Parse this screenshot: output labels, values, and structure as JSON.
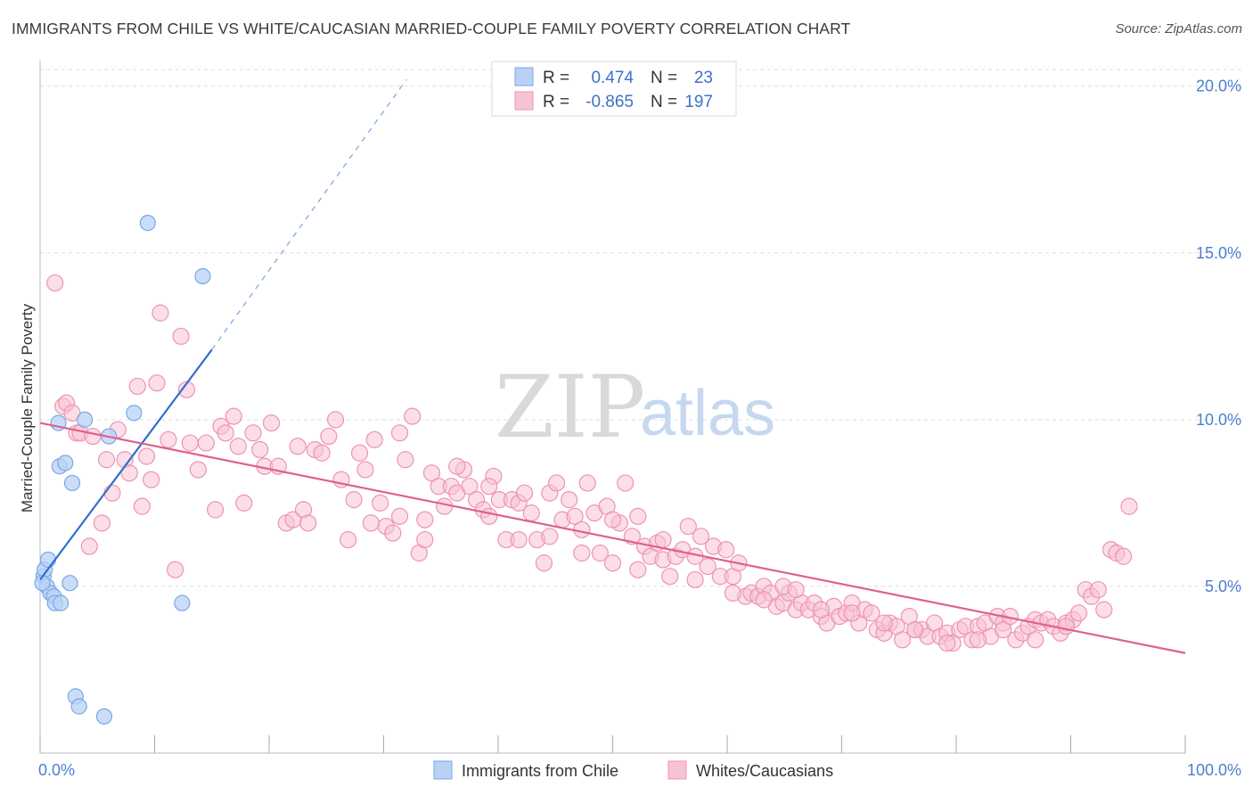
{
  "title": "IMMIGRANTS FROM CHILE VS WHITE/CAUCASIAN MARRIED-COUPLE FAMILY POVERTY CORRELATION CHART",
  "source": "Source: ZipAtlas.com",
  "watermark": {
    "zip": "ZIP",
    "atlas": "atlas"
  },
  "colors": {
    "blue_fill": "#b8d2f5",
    "blue_stroke": "#7aa7e6",
    "blue_line": "#2f6fd0",
    "pink_fill": "#f7c3d4",
    "pink_stroke": "#ee93b2",
    "pink_line": "#e0608e",
    "axis_text": "#4a7fd0",
    "grid": "#dddddd"
  },
  "legend": {
    "rows": [
      {
        "r_label": "R =",
        "r_value": "0.474",
        "n_label": "N =",
        "n_value": "23"
      },
      {
        "r_label": "R =",
        "r_value": "-0.865",
        "n_label": "N =",
        "n_value": "197"
      }
    ]
  },
  "bottom_legend": [
    "Immigrants from Chile",
    "Whites/Caucasians"
  ],
  "chart_data": {
    "type": "scatter",
    "title": "IMMIGRANTS FROM CHILE VS WHITE/CAUCASIAN MARRIED-COUPLE FAMILY POVERTY CORRELATION CHART",
    "xlabel": "",
    "ylabel": "Married-Couple Family Poverty",
    "xlim": [
      0,
      100
    ],
    "ylim": [
      0,
      20.5
    ],
    "x_tick_labels": [
      "0.0%",
      "100.0%"
    ],
    "y_ticks": [
      5,
      10,
      15,
      20
    ],
    "y_tick_labels": [
      "5.0%",
      "10.0%",
      "15.0%",
      "20.0%"
    ],
    "grid": true,
    "legend_position": "top-center",
    "series": [
      {
        "name": "Immigrants from Chile",
        "color": "#b8d2f5",
        "points": [
          [
            0.3,
            5.3
          ],
          [
            0.4,
            5.5
          ],
          [
            0.6,
            5.0
          ],
          [
            0.7,
            5.8
          ],
          [
            0.9,
            4.8
          ],
          [
            1.2,
            4.7
          ],
          [
            1.3,
            4.5
          ],
          [
            1.6,
            9.9
          ],
          [
            1.7,
            8.6
          ],
          [
            1.8,
            4.5
          ],
          [
            2.2,
            8.7
          ],
          [
            2.6,
            5.1
          ],
          [
            2.8,
            8.1
          ],
          [
            3.1,
            1.7
          ],
          [
            3.4,
            1.4
          ],
          [
            3.9,
            10.0
          ],
          [
            5.6,
            1.1
          ],
          [
            6.0,
            9.5
          ],
          [
            8.2,
            10.2
          ],
          [
            9.4,
            15.9
          ],
          [
            12.4,
            4.5
          ],
          [
            14.2,
            14.3
          ],
          [
            0.2,
            5.1
          ]
        ],
        "trend": {
          "x": [
            0,
            15
          ],
          "y": [
            5.2,
            12.1
          ],
          "dashed_to": [
            32,
            20.2
          ]
        }
      },
      {
        "name": "Whites/Caucasians",
        "color": "#f7c3d4",
        "points": [
          [
            1.3,
            14.1
          ],
          [
            2.0,
            10.4
          ],
          [
            2.3,
            10.5
          ],
          [
            2.8,
            10.2
          ],
          [
            3.2,
            9.6
          ],
          [
            3.5,
            9.6
          ],
          [
            4.3,
            6.2
          ],
          [
            4.6,
            9.5
          ],
          [
            5.4,
            6.9
          ],
          [
            5.8,
            8.8
          ],
          [
            6.3,
            7.8
          ],
          [
            6.8,
            9.7
          ],
          [
            7.4,
            8.8
          ],
          [
            7.8,
            8.4
          ],
          [
            8.5,
            11.0
          ],
          [
            8.9,
            7.4
          ],
          [
            9.3,
            8.9
          ],
          [
            9.7,
            8.2
          ],
          [
            10.2,
            11.1
          ],
          [
            10.5,
            13.2
          ],
          [
            11.2,
            9.4
          ],
          [
            11.8,
            5.5
          ],
          [
            12.3,
            12.5
          ],
          [
            12.8,
            10.9
          ],
          [
            13.1,
            9.3
          ],
          [
            13.8,
            8.5
          ],
          [
            14.5,
            9.3
          ],
          [
            15.3,
            7.3
          ],
          [
            15.8,
            9.8
          ],
          [
            16.2,
            9.6
          ],
          [
            16.9,
            10.1
          ],
          [
            17.3,
            9.2
          ],
          [
            17.8,
            7.5
          ],
          [
            18.6,
            9.6
          ],
          [
            19.2,
            9.1
          ],
          [
            19.6,
            8.6
          ],
          [
            20.2,
            9.9
          ],
          [
            20.8,
            8.6
          ],
          [
            21.5,
            6.9
          ],
          [
            22.1,
            7.0
          ],
          [
            22.5,
            9.2
          ],
          [
            23.0,
            7.3
          ],
          [
            23.4,
            6.9
          ],
          [
            24.0,
            9.1
          ],
          [
            24.6,
            9.0
          ],
          [
            25.2,
            9.5
          ],
          [
            25.8,
            10.0
          ],
          [
            26.3,
            8.2
          ],
          [
            26.9,
            6.4
          ],
          [
            27.4,
            7.6
          ],
          [
            27.9,
            9.0
          ],
          [
            28.4,
            8.5
          ],
          [
            29.2,
            9.4
          ],
          [
            29.7,
            7.5
          ],
          [
            30.2,
            6.8
          ],
          [
            30.8,
            6.6
          ],
          [
            31.4,
            7.1
          ],
          [
            31.9,
            8.8
          ],
          [
            32.5,
            10.1
          ],
          [
            33.1,
            6.0
          ],
          [
            33.6,
            6.4
          ],
          [
            34.2,
            8.4
          ],
          [
            34.8,
            8.0
          ],
          [
            35.3,
            7.4
          ],
          [
            35.9,
            8.0
          ],
          [
            36.4,
            7.8
          ],
          [
            37.0,
            8.5
          ],
          [
            37.5,
            8.0
          ],
          [
            38.1,
            7.6
          ],
          [
            38.7,
            7.3
          ],
          [
            39.2,
            7.1
          ],
          [
            39.6,
            8.3
          ],
          [
            40.1,
            7.6
          ],
          [
            40.7,
            6.4
          ],
          [
            41.2,
            7.6
          ],
          [
            41.8,
            7.5
          ],
          [
            42.3,
            7.8
          ],
          [
            42.9,
            7.2
          ],
          [
            43.4,
            6.4
          ],
          [
            44.0,
            5.7
          ],
          [
            44.5,
            7.8
          ],
          [
            45.1,
            8.1
          ],
          [
            45.6,
            7.0
          ],
          [
            46.2,
            7.6
          ],
          [
            46.7,
            7.1
          ],
          [
            47.3,
            6.7
          ],
          [
            47.8,
            8.1
          ],
          [
            48.4,
            7.2
          ],
          [
            48.9,
            6.0
          ],
          [
            49.5,
            7.4
          ],
          [
            50.0,
            5.7
          ],
          [
            50.6,
            6.9
          ],
          [
            51.1,
            8.1
          ],
          [
            51.7,
            6.5
          ],
          [
            52.2,
            7.1
          ],
          [
            52.8,
            6.2
          ],
          [
            53.3,
            5.9
          ],
          [
            53.9,
            6.3
          ],
          [
            54.4,
            5.8
          ],
          [
            55.0,
            5.3
          ],
          [
            55.5,
            5.9
          ],
          [
            56.1,
            6.1
          ],
          [
            56.6,
            6.8
          ],
          [
            57.2,
            5.2
          ],
          [
            57.7,
            6.5
          ],
          [
            58.3,
            5.6
          ],
          [
            58.8,
            6.2
          ],
          [
            59.4,
            5.3
          ],
          [
            59.9,
            6.1
          ],
          [
            60.5,
            5.3
          ],
          [
            61.0,
            5.7
          ],
          [
            61.6,
            4.7
          ],
          [
            62.1,
            4.8
          ],
          [
            62.7,
            4.7
          ],
          [
            63.2,
            5.0
          ],
          [
            63.8,
            4.8
          ],
          [
            64.3,
            4.4
          ],
          [
            64.9,
            4.5
          ],
          [
            65.4,
            4.8
          ],
          [
            66.0,
            4.3
          ],
          [
            66.5,
            4.5
          ],
          [
            67.1,
            4.3
          ],
          [
            67.6,
            4.5
          ],
          [
            68.2,
            4.1
          ],
          [
            68.7,
            3.9
          ],
          [
            69.3,
            4.4
          ],
          [
            69.8,
            4.1
          ],
          [
            70.4,
            4.2
          ],
          [
            70.9,
            4.5
          ],
          [
            71.5,
            3.9
          ],
          [
            72.0,
            4.3
          ],
          [
            72.6,
            4.2
          ],
          [
            73.1,
            3.7
          ],
          [
            73.7,
            3.6
          ],
          [
            74.2,
            3.9
          ],
          [
            74.8,
            3.8
          ],
          [
            75.3,
            3.4
          ],
          [
            75.9,
            4.1
          ],
          [
            76.4,
            3.7
          ],
          [
            77.0,
            3.7
          ],
          [
            77.5,
            3.5
          ],
          [
            78.1,
            3.9
          ],
          [
            78.6,
            3.5
          ],
          [
            79.2,
            3.6
          ],
          [
            79.7,
            3.3
          ],
          [
            80.3,
            3.7
          ],
          [
            80.8,
            3.8
          ],
          [
            81.4,
            3.4
          ],
          [
            81.9,
            3.8
          ],
          [
            82.5,
            3.9
          ],
          [
            83.0,
            3.5
          ],
          [
            83.6,
            4.1
          ],
          [
            84.1,
            3.9
          ],
          [
            84.7,
            4.1
          ],
          [
            85.2,
            3.4
          ],
          [
            85.8,
            3.6
          ],
          [
            86.3,
            3.8
          ],
          [
            86.9,
            4.0
          ],
          [
            87.4,
            3.9
          ],
          [
            88.0,
            4.0
          ],
          [
            88.5,
            3.8
          ],
          [
            89.1,
            3.6
          ],
          [
            89.6,
            3.9
          ],
          [
            90.2,
            4.0
          ],
          [
            90.7,
            4.2
          ],
          [
            91.3,
            4.9
          ],
          [
            91.8,
            4.7
          ],
          [
            92.4,
            4.9
          ],
          [
            92.9,
            4.3
          ],
          [
            93.5,
            6.1
          ],
          [
            94.0,
            6.0
          ],
          [
            94.6,
            5.9
          ],
          [
            95.1,
            7.4
          ],
          [
            64.9,
            5.0
          ],
          [
            66.0,
            4.9
          ],
          [
            68.2,
            4.3
          ],
          [
            70.9,
            4.2
          ],
          [
            73.7,
            3.9
          ],
          [
            76.4,
            3.7
          ],
          [
            79.2,
            3.3
          ],
          [
            81.9,
            3.4
          ],
          [
            84.1,
            3.7
          ],
          [
            86.9,
            3.4
          ],
          [
            89.6,
            3.8
          ],
          [
            57.2,
            5.9
          ],
          [
            60.5,
            4.8
          ],
          [
            63.2,
            4.6
          ],
          [
            54.4,
            6.4
          ],
          [
            52.2,
            5.5
          ],
          [
            50.0,
            7.0
          ],
          [
            47.3,
            6.0
          ],
          [
            44.5,
            6.5
          ],
          [
            41.8,
            6.4
          ],
          [
            39.2,
            8.0
          ],
          [
            36.4,
            8.6
          ],
          [
            33.6,
            7.0
          ],
          [
            31.4,
            9.6
          ],
          [
            28.9,
            6.9
          ]
        ],
        "trend": {
          "x": [
            0,
            100
          ],
          "y": [
            9.9,
            3.0
          ]
        }
      }
    ]
  }
}
